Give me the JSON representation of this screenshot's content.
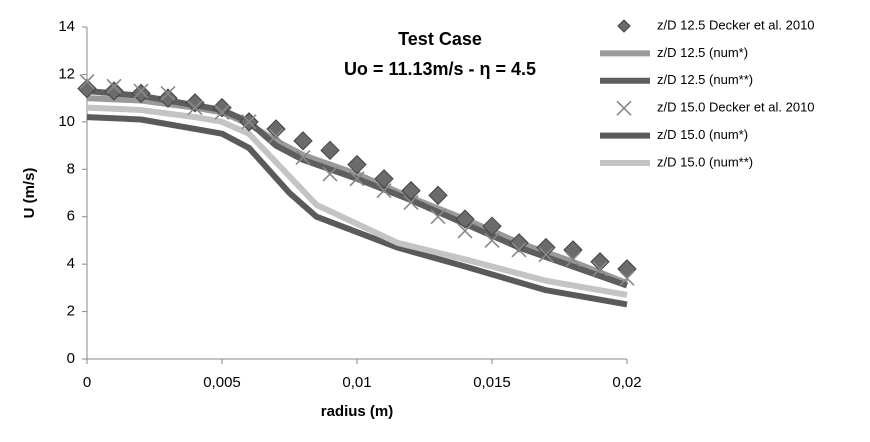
{
  "chart_data": {
    "type": "line",
    "title": [
      "Test Case",
      "Uo = 11.13m/s - η = 4.5"
    ],
    "x_label": "radius (m)",
    "y_label": "U (m/s)",
    "xlim": [
      0,
      0.02
    ],
    "xticks": [
      0,
      {
        "value": 0.005,
        "label": "0,005"
      },
      {
        "value": 0.01,
        "label": "0,01"
      },
      {
        "value": 0.015,
        "label": "0,015"
      },
      {
        "value": 0.02,
        "label": "0,02"
      }
    ],
    "ylim": [
      0,
      14
    ],
    "yticks": [
      0,
      2,
      4,
      6,
      8,
      10,
      12,
      14
    ],
    "grid": false,
    "legend": "right",
    "series": [
      {
        "name": "z/D 12.5 Decker et al. 2010",
        "color": "#6b6b6b",
        "marker": "diamond",
        "x": [
          0,
          0.001,
          0.002,
          0.003,
          0.004,
          0.005,
          0.006,
          0.007,
          0.008,
          0.009,
          0.01,
          0.011,
          0.012,
          0.013,
          0.014,
          0.015,
          0.016,
          0.017,
          0.018,
          0.019,
          0.02
        ],
        "values": [
          11.4,
          11.3,
          11.2,
          11.0,
          10.8,
          10.6,
          10.0,
          9.7,
          9.2,
          8.8,
          8.2,
          7.6,
          7.1,
          6.9,
          5.9,
          5.6,
          4.9,
          4.7,
          4.6,
          4.1,
          3.8
        ]
      },
      {
        "name": "z/D 12.5 (num*)",
        "color": "#9a9a9a",
        "marker": "none",
        "x": [
          0,
          0.002,
          0.004,
          0.005,
          0.006,
          0.007,
          0.008,
          0.01,
          0.012,
          0.014,
          0.016,
          0.018,
          0.02
        ],
        "values": [
          11.0,
          10.9,
          10.6,
          10.4,
          9.9,
          9.2,
          8.6,
          7.8,
          6.8,
          5.9,
          4.9,
          4.1,
          3.2
        ]
      },
      {
        "name": "z/D 12.5 (num**)",
        "color": "#5e5e5e",
        "marker": "none",
        "x": [
          0,
          0.002,
          0.004,
          0.005,
          0.006,
          0.007,
          0.008,
          0.01,
          0.012,
          0.014,
          0.016,
          0.018,
          0.02
        ],
        "values": [
          11.3,
          11.1,
          10.7,
          10.5,
          10.0,
          9.0,
          8.4,
          7.6,
          6.7,
          5.7,
          4.7,
          3.9,
          3.1
        ]
      },
      {
        "name": "z/D 15.0 Decker et al. 2010",
        "color": "#888888",
        "marker": "x",
        "x": [
          0,
          0.001,
          0.002,
          0.003,
          0.004,
          0.005,
          0.006,
          0.007,
          0.008,
          0.009,
          0.01,
          0.011,
          0.012,
          0.013,
          0.014,
          0.015,
          0.016,
          0.017,
          0.018,
          0.019,
          0.02
        ],
        "values": [
          11.7,
          11.5,
          11.3,
          11.2,
          10.6,
          10.4,
          10.0,
          9.4,
          8.5,
          7.8,
          7.6,
          7.1,
          6.6,
          6.0,
          5.4,
          5.0,
          4.6,
          4.4,
          4.2,
          3.8,
          3.4
        ]
      },
      {
        "name": "z/D 15.0 (num*)",
        "color": "#5a5a5a",
        "marker": "none",
        "x": [
          0,
          0.002,
          0.004,
          0.005,
          0.006,
          0.0075,
          0.0085,
          0.0115,
          0.014,
          0.017,
          0.02
        ],
        "values": [
          10.2,
          10.1,
          9.7,
          9.5,
          8.9,
          7.0,
          6.0,
          4.7,
          3.9,
          2.9,
          2.3
        ]
      },
      {
        "name": "z/D 15.0 (num**)",
        "color": "#c4c4c4",
        "marker": "none",
        "x": [
          0,
          0.002,
          0.004,
          0.005,
          0.006,
          0.0085,
          0.0115,
          0.014,
          0.017,
          0.02
        ],
        "values": [
          10.6,
          10.5,
          10.2,
          10.0,
          9.5,
          6.5,
          4.9,
          4.2,
          3.3,
          2.7
        ]
      }
    ]
  }
}
